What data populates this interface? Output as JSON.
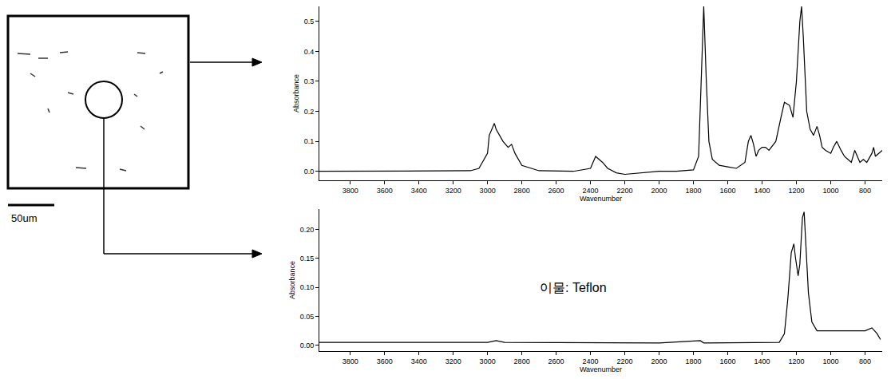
{
  "image": {
    "scale_bar": "50um"
  },
  "chart_data": [
    {
      "type": "line",
      "xlabel": "Wavenumber",
      "ylabel": "Absorbance",
      "color": "#000000",
      "x": [
        3980,
        3800,
        3600,
        3400,
        3200,
        3100,
        3050,
        3000,
        2990,
        2960,
        2950,
        2930,
        2910,
        2880,
        2860,
        2840,
        2800,
        2700,
        2500,
        2400,
        2370,
        2350,
        2330,
        2300,
        2250,
        2200,
        2100,
        2000,
        1900,
        1800,
        1770,
        1755,
        1740,
        1725,
        1710,
        1690,
        1650,
        1600,
        1550,
        1500,
        1480,
        1465,
        1450,
        1435,
        1420,
        1400,
        1380,
        1360,
        1320,
        1290,
        1270,
        1240,
        1220,
        1200,
        1180,
        1170,
        1160,
        1140,
        1120,
        1100,
        1080,
        1065,
        1050,
        1030,
        1000,
        985,
        965,
        940,
        920,
        900,
        880,
        860,
        845,
        830,
        810,
        790,
        760,
        750,
        740,
        720,
        700
      ],
      "values": [
        0,
        0,
        0,
        0,
        0,
        0.002,
        0.01,
        0.06,
        0.12,
        0.16,
        0.14,
        0.12,
        0.1,
        0.08,
        0.09,
        0.06,
        0.02,
        0.002,
        0,
        0.01,
        0.05,
        0.04,
        0.03,
        0.01,
        -0.005,
        -0.01,
        -0.005,
        0,
        0,
        0.005,
        0.05,
        0.3,
        0.55,
        0.3,
        0.1,
        0.04,
        0.02,
        0.015,
        0.01,
        0.03,
        0.1,
        0.12,
        0.09,
        0.05,
        0.07,
        0.08,
        0.08,
        0.07,
        0.1,
        0.18,
        0.23,
        0.22,
        0.18,
        0.3,
        0.5,
        0.55,
        0.45,
        0.2,
        0.14,
        0.12,
        0.15,
        0.12,
        0.08,
        0.07,
        0.06,
        0.08,
        0.1,
        0.07,
        0.05,
        0.04,
        0.03,
        0.07,
        0.05,
        0.03,
        0.04,
        0.03,
        0.06,
        0.08,
        0.05,
        0.06,
        0.07
      ],
      "xlim": [
        3980,
        700
      ],
      "xticks": [
        3800,
        3600,
        3400,
        3200,
        3000,
        2800,
        2600,
        2400,
        2200,
        2000,
        1800,
        1600,
        1400,
        1200,
        1000,
        800
      ],
      "ylim": [
        -0.03,
        0.55
      ],
      "yticks": [
        {
          "value": 0,
          "label": "0.0"
        },
        0.1,
        0.2,
        0.3,
        0.4,
        0.5
      ]
    },
    {
      "type": "line",
      "xlabel": "Wavenumber",
      "ylabel": "Absorbance",
      "color": "#000000",
      "annotations": [
        {
          "text": "이물: Teflon",
          "x": 2500,
          "y": 0.1
        }
      ],
      "x": [
        3980,
        3000,
        2950,
        2900,
        2000,
        1760,
        1740,
        1400,
        1300,
        1270,
        1250,
        1230,
        1215,
        1205,
        1190,
        1180,
        1165,
        1155,
        1145,
        1130,
        1110,
        1080,
        1000,
        900,
        800,
        760,
        730,
        710
      ],
      "values": [
        0.005,
        0.005,
        0.008,
        0.005,
        0.004,
        0.008,
        0.004,
        0.004,
        0.005,
        0.02,
        0.08,
        0.16,
        0.175,
        0.15,
        0.12,
        0.14,
        0.22,
        0.23,
        0.18,
        0.09,
        0.04,
        0.025,
        0.025,
        0.025,
        0.025,
        0.03,
        0.02,
        0.01
      ],
      "xlim": [
        3980,
        700
      ],
      "xticks": [
        3800,
        3600,
        3400,
        3200,
        3000,
        2800,
        2600,
        2400,
        2200,
        2000,
        1800,
        1600,
        1400,
        1200,
        1000,
        800
      ],
      "ylim": [
        -0.01,
        0.235
      ],
      "yticks": [
        {
          "value": 0,
          "label": "0.00"
        },
        0.05,
        {
          "value": 0.1,
          "label": "0.10"
        },
        {
          "value": 0.15,
          "label": "0.15"
        },
        {
          "value": 0.2,
          "label": "0.20"
        }
      ]
    }
  ]
}
